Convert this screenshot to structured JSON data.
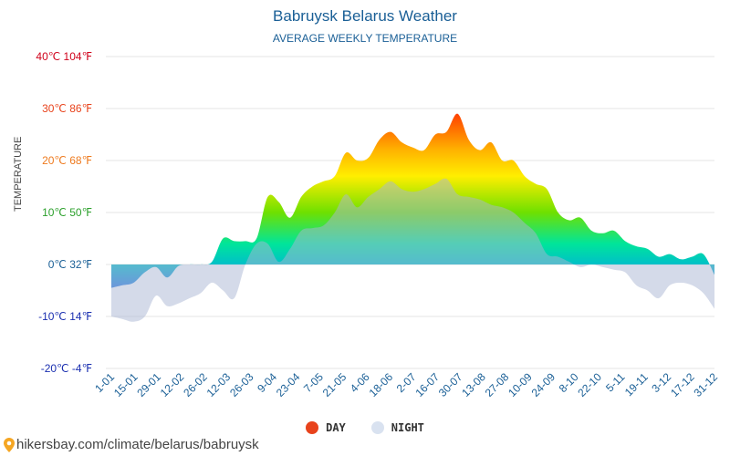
{
  "title": "Babruysk Belarus Weather",
  "subtitle": "AVERAGE WEEKLY TEMPERATURE",
  "ylabel": "TEMPERATURE",
  "legend": {
    "day": {
      "label": "DAY",
      "color": "#e8431c"
    },
    "night": {
      "label": "NIGHT",
      "color": "#d9e2f0"
    }
  },
  "footer": {
    "url": "hikersbay.com/climate/belarus/babruysk",
    "pin_icon": "location-pin-icon"
  },
  "colors": {
    "title": "#1a5f96",
    "night_fill": "#a9b6d4",
    "grid": "#e6e6e6",
    "x_tick": "#1a5f96"
  },
  "chart_data": {
    "type": "area",
    "title": "Babruysk Belarus Weather",
    "subtitle": "AVERAGE WEEKLY TEMPERATURE",
    "ylabel": "TEMPERATURE",
    "ylim": [
      -20,
      40
    ],
    "yticks": [
      {
        "value": 40,
        "label": "40℃ 104℉",
        "color": "#d0021b"
      },
      {
        "value": 30,
        "label": "30℃ 86℉",
        "color": "#e8431c"
      },
      {
        "value": 20,
        "label": "20℃ 68℉",
        "color": "#ee7a1e"
      },
      {
        "value": 10,
        "label": "10℃ 50℉",
        "color": "#2ca02c"
      },
      {
        "value": 0,
        "label": "0℃ 32℉",
        "color": "#1a5f96"
      },
      {
        "value": -10,
        "label": "-10℃ 14℉",
        "color": "#1a2fb0"
      },
      {
        "value": -20,
        "label": "-20℃ -4℉",
        "color": "#1a2fb0"
      }
    ],
    "xlabels": [
      "1-01",
      "15-01",
      "29-01",
      "12-02",
      "26-02",
      "12-03",
      "26-03",
      "9-04",
      "23-04",
      "7-05",
      "21-05",
      "4-06",
      "18-06",
      "2-07",
      "16-07",
      "30-07",
      "13-08",
      "27-08",
      "10-09",
      "24-09",
      "8-10",
      "22-10",
      "5-11",
      "19-11",
      "3-12",
      "17-12",
      "31-12"
    ],
    "series": [
      {
        "name": "DAY",
        "values": [
          -4.5,
          -4,
          -3.5,
          -1.5,
          -0.5,
          -2.5,
          -0.3,
          0,
          0,
          0.5,
          5,
          4.5,
          4.5,
          5,
          13,
          12,
          9,
          13,
          15,
          16,
          17,
          21.5,
          20,
          20.5,
          24,
          25.5,
          23.5,
          22.5,
          22,
          25,
          25.5,
          29,
          24,
          22,
          23.5,
          20,
          20,
          17,
          15.5,
          14.5,
          10,
          8.5,
          9,
          6.5,
          6,
          6.5,
          4.5,
          3.5,
          3,
          1.5,
          2,
          1,
          1.5,
          2,
          -2
        ]
      },
      {
        "name": "NIGHT",
        "values": [
          -10,
          -10.5,
          -11,
          -10,
          -6,
          -8,
          -7.5,
          -6.5,
          -5.5,
          -3.5,
          -5,
          -6.5,
          0,
          4,
          4,
          0.5,
          3,
          6.5,
          7,
          7.5,
          10,
          13.5,
          11,
          13,
          14.5,
          16,
          14.5,
          14,
          14.5,
          15.5,
          16.5,
          13.5,
          13,
          12.5,
          11.5,
          11,
          10,
          8,
          6,
          2,
          1.5,
          0.5,
          -0.5,
          0,
          -0.5,
          -1,
          -1.5,
          -4,
          -5,
          -6.5,
          -4,
          -3.5,
          -4,
          -5.5,
          -8.5
        ]
      }
    ],
    "grid": true,
    "legend_position": "bottom"
  }
}
